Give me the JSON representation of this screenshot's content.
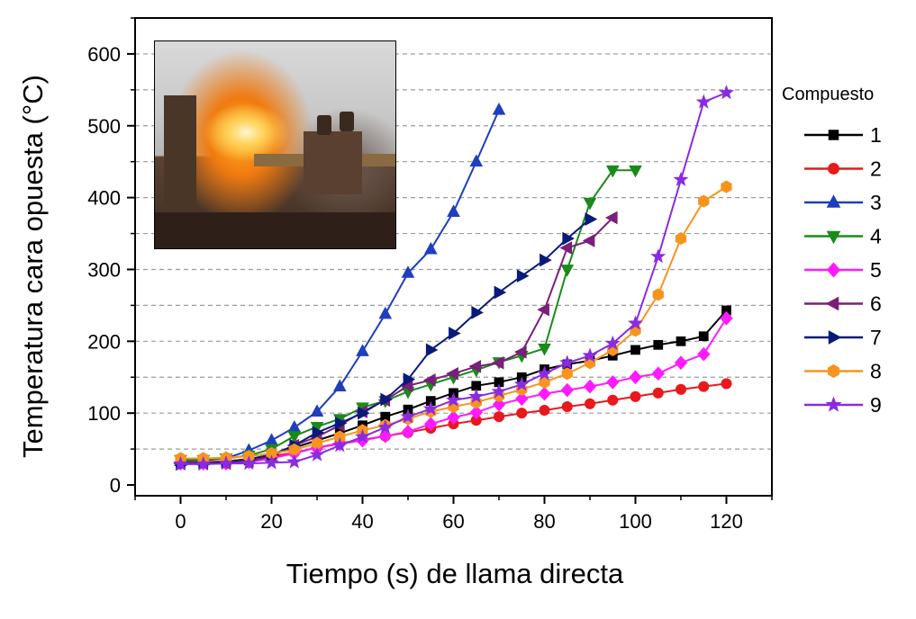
{
  "chart_data": {
    "type": "line",
    "xlabel": "Tiempo (s) de llama directa",
    "ylabel": "Temperatura cara opuesta (°C)",
    "xlim": [
      -10,
      130
    ],
    "ylim": [
      -15,
      650
    ],
    "xticks": [
      0,
      20,
      40,
      60,
      80,
      100,
      120
    ],
    "yticks": [
      0,
      100,
      200,
      300,
      400,
      500,
      600
    ],
    "grid": "horizontal dashed, every 50",
    "legend_title": "Compuesto",
    "legend_position": "right",
    "series": [
      {
        "name": "1",
        "color": "#000000",
        "marker": "square",
        "x": [
          0,
          5,
          10,
          15,
          20,
          25,
          30,
          35,
          40,
          45,
          50,
          55,
          60,
          65,
          70,
          75,
          80,
          85,
          90,
          95,
          100,
          105,
          110,
          115,
          120
        ],
        "y": [
          31,
          31,
          33,
          36,
          42,
          52,
          62,
          72,
          83,
          95,
          105,
          117,
          128,
          138,
          143,
          150,
          161,
          168,
          173,
          180,
          188,
          195,
          200,
          207,
          243
        ]
      },
      {
        "name": "2",
        "color": "#e8191d",
        "marker": "circle",
        "x": [
          0,
          5,
          10,
          15,
          20,
          25,
          30,
          35,
          40,
          45,
          50,
          55,
          60,
          65,
          70,
          75,
          80,
          85,
          90,
          95,
          100,
          105,
          110,
          115,
          120
        ],
        "y": [
          32,
          32,
          33,
          36,
          40,
          45,
          52,
          58,
          63,
          68,
          73,
          79,
          85,
          90,
          95,
          100,
          104,
          109,
          113,
          118,
          123,
          128,
          133,
          137,
          141
        ]
      },
      {
        "name": "3",
        "color": "#1f3fbf",
        "marker": "triangle-up",
        "x": [
          0,
          5,
          10,
          15,
          20,
          25,
          30,
          35,
          40,
          45,
          50,
          55,
          60,
          65,
          70
        ],
        "y": [
          33,
          34,
          37,
          48,
          62,
          80,
          102,
          137,
          186,
          238,
          295,
          328,
          380,
          450,
          522
        ]
      },
      {
        "name": "4",
        "color": "#1a8a1a",
        "marker": "triangle-down",
        "x": [
          0,
          5,
          10,
          15,
          20,
          25,
          30,
          35,
          40,
          45,
          50,
          55,
          60,
          65,
          70,
          75,
          80,
          85,
          90,
          95,
          100
        ],
        "y": [
          35,
          35,
          37,
          41,
          50,
          68,
          81,
          92,
          108,
          117,
          130,
          140,
          150,
          160,
          171,
          180,
          190,
          300,
          393,
          438,
          438
        ]
      },
      {
        "name": "5",
        "color": "#ff1aff",
        "marker": "diamond",
        "x": [
          0,
          5,
          10,
          15,
          20,
          25,
          30,
          35,
          40,
          45,
          50,
          55,
          60,
          65,
          70,
          75,
          80,
          85,
          90,
          95,
          100,
          105,
          110,
          115,
          120
        ],
        "y": [
          30,
          30,
          30,
          32,
          37,
          44,
          52,
          57,
          62,
          68,
          74,
          85,
          94,
          101,
          112,
          120,
          127,
          132,
          137,
          143,
          150,
          155,
          170,
          182,
          232
        ]
      },
      {
        "name": "6",
        "color": "#7a1f7a",
        "marker": "triangle-left",
        "x": [
          0,
          5,
          10,
          15,
          20,
          25,
          30,
          35,
          40,
          45,
          50,
          55,
          60,
          65,
          70,
          75,
          80,
          85,
          90,
          95
        ],
        "y": [
          30,
          30,
          30,
          33,
          40,
          55,
          67,
          83,
          102,
          118,
          138,
          146,
          155,
          165,
          170,
          185,
          244,
          330,
          340,
          372
        ]
      },
      {
        "name": "7",
        "color": "#0a1a7a",
        "marker": "triangle-right",
        "x": [
          0,
          5,
          10,
          15,
          20,
          25,
          30,
          35,
          40,
          45,
          50,
          55,
          60,
          65,
          70,
          75,
          80,
          85,
          90
        ],
        "y": [
          29,
          30,
          32,
          36,
          42,
          55,
          73,
          86,
          100,
          119,
          147,
          188,
          211,
          240,
          268,
          291,
          313,
          343,
          370
        ]
      },
      {
        "name": "8",
        "color": "#f7941d",
        "marker": "hexagon",
        "x": [
          0,
          5,
          10,
          15,
          20,
          25,
          30,
          35,
          40,
          45,
          50,
          55,
          60,
          65,
          70,
          75,
          80,
          85,
          90,
          95,
          100,
          105,
          110,
          115,
          120
        ],
        "y": [
          37,
          37,
          38,
          40,
          44,
          49,
          58,
          67,
          76,
          83,
          92,
          102,
          109,
          115,
          124,
          133,
          143,
          155,
          170,
          188,
          215,
          265,
          343,
          395,
          415
        ]
      },
      {
        "name": "9",
        "color": "#8a2be2",
        "marker": "star",
        "x": [
          0,
          5,
          10,
          15,
          20,
          25,
          30,
          35,
          40,
          45,
          50,
          55,
          60,
          65,
          70,
          75,
          80,
          85,
          90,
          95,
          100,
          105,
          110,
          115,
          120
        ],
        "y": [
          29,
          29,
          30,
          30,
          31,
          32,
          42,
          55,
          67,
          80,
          95,
          106,
          118,
          123,
          130,
          140,
          155,
          170,
          180,
          197,
          225,
          318,
          425,
          533,
          546
        ]
      }
    ]
  }
}
